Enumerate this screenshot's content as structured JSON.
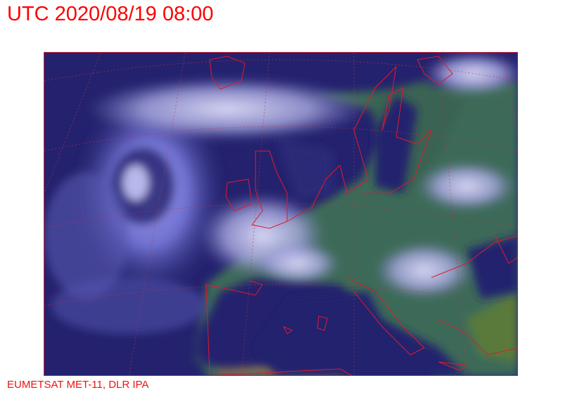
{
  "header": {
    "title": "UTC 2020/08/19 08:00"
  },
  "footer": {
    "credit": "EUMETSAT MET-11, DLR IPA"
  },
  "map": {
    "type": "satellite-image",
    "region": "Europe and North Atlantic",
    "colors": {
      "ocean": "#232170",
      "land": "#3f6a5a",
      "cloud": "#c8c8f0",
      "coastline": "#e01a2a",
      "grid": "#c83040",
      "label": "#ff0000"
    }
  }
}
